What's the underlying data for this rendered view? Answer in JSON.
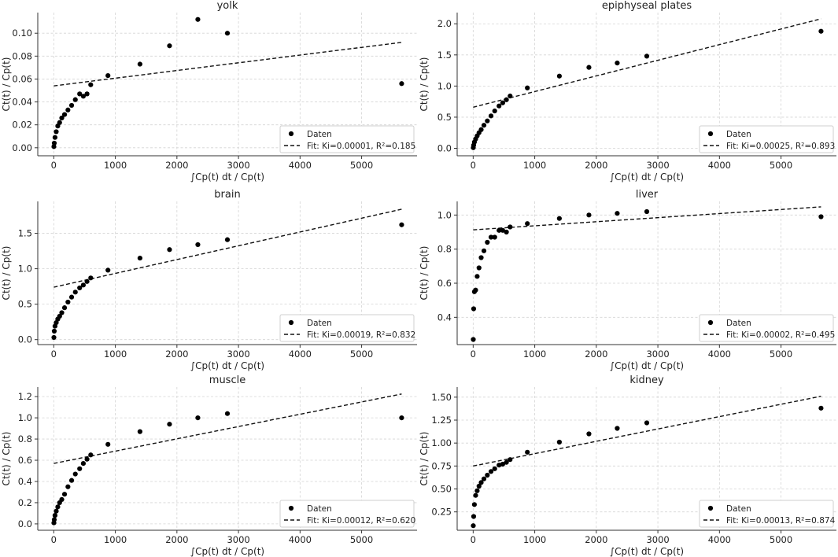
{
  "chart_data": [
    {
      "type": "scatter",
      "title": "yolk",
      "xlabel": "∫Cp(t) dt / Cp(t)",
      "ylabel": "Ct(t) / Cp(t)",
      "xlim": [
        -260,
        5900
      ],
      "ylim": [
        -0.007,
        0.118
      ],
      "xticks": [
        0,
        1000,
        2000,
        3000,
        4000,
        5000
      ],
      "yticks": [
        0.0,
        0.02,
        0.04,
        0.06,
        0.08,
        0.1
      ],
      "ytick_labels": [
        "0.00",
        "0.02",
        "0.04",
        "0.06",
        "0.08",
        "0.10"
      ],
      "grid": true,
      "legend_position": "lower-right",
      "series": [
        {
          "name": "Daten",
          "kind": "points",
          "x": [
            2,
            8,
            20,
            40,
            65,
            95,
            130,
            175,
            230,
            290,
            350,
            420,
            480,
            540,
            600,
            880,
            1400,
            1880,
            2340,
            2820,
            5650
          ],
          "y": [
            0.001,
            0.004,
            0.009,
            0.014,
            0.019,
            0.022,
            0.026,
            0.029,
            0.033,
            0.037,
            0.042,
            0.047,
            0.045,
            0.047,
            0.055,
            0.063,
            0.073,
            0.089,
            0.112,
            0.1,
            0.056
          ]
        },
        {
          "name": "Fit: Ki=0.00001, R²=0.185",
          "kind": "line",
          "x": [
            0,
            5650
          ],
          "y": [
            0.054,
            0.092
          ]
        }
      ]
    },
    {
      "type": "scatter",
      "title": "epiphyseal plates",
      "xlabel": "∫Cp(t) dt / Cp(t)",
      "ylabel": "Ct(t) / Cp(t)",
      "xlim": [
        -260,
        5900
      ],
      "ylim": [
        -0.12,
        2.18
      ],
      "xticks": [
        0,
        1000,
        2000,
        3000,
        4000,
        5000
      ],
      "yticks": [
        0.0,
        0.5,
        1.0,
        1.5,
        2.0
      ],
      "ytick_labels": [
        "0.0",
        "0.5",
        "1.0",
        "1.5",
        "2.0"
      ],
      "grid": true,
      "legend_position": "lower-right",
      "series": [
        {
          "name": "Daten",
          "kind": "points",
          "x": [
            2,
            8,
            20,
            40,
            65,
            95,
            130,
            175,
            230,
            290,
            350,
            420,
            480,
            540,
            600,
            880,
            1400,
            1880,
            2340,
            2820,
            5650
          ],
          "y": [
            0.01,
            0.05,
            0.1,
            0.15,
            0.2,
            0.25,
            0.3,
            0.37,
            0.44,
            0.52,
            0.6,
            0.68,
            0.73,
            0.78,
            0.84,
            0.97,
            1.16,
            1.3,
            1.37,
            1.48,
            1.88
          ]
        },
        {
          "name": "Fit: Ki=0.00025, R²=0.893",
          "kind": "line",
          "x": [
            0,
            5650
          ],
          "y": [
            0.66,
            2.08
          ]
        }
      ]
    },
    {
      "type": "scatter",
      "title": "brain",
      "xlabel": "∫Cp(t) dt / Cp(t)",
      "ylabel": "Ct(t) / Cp(t)",
      "xlim": [
        -260,
        5900
      ],
      "ylim": [
        -0.07,
        1.95
      ],
      "xticks": [
        0,
        1000,
        2000,
        3000,
        4000,
        5000
      ],
      "yticks": [
        0.0,
        0.5,
        1.0,
        1.5
      ],
      "ytick_labels": [
        "0.0",
        "0.5",
        "1.0",
        "1.5"
      ],
      "grid": true,
      "legend_position": "lower-right",
      "series": [
        {
          "name": "Daten",
          "kind": "points",
          "x": [
            2,
            8,
            20,
            40,
            65,
            95,
            130,
            175,
            230,
            290,
            350,
            420,
            480,
            540,
            600,
            880,
            1400,
            1880,
            2340,
            2820,
            5650
          ],
          "y": [
            0.03,
            0.12,
            0.19,
            0.24,
            0.29,
            0.33,
            0.38,
            0.45,
            0.53,
            0.6,
            0.67,
            0.73,
            0.77,
            0.82,
            0.87,
            0.98,
            1.15,
            1.27,
            1.34,
            1.41,
            1.62
          ]
        },
        {
          "name": "Fit: Ki=0.00019, R²=0.832",
          "kind": "line",
          "x": [
            0,
            5650
          ],
          "y": [
            0.74,
            1.84
          ]
        }
      ]
    },
    {
      "type": "scatter",
      "title": "liver",
      "xlabel": "∫Cp(t) dt / Cp(t)",
      "ylabel": "Ct(t) / Cp(t)",
      "xlim": [
        -260,
        5900
      ],
      "ylim": [
        0.24,
        1.08
      ],
      "xticks": [
        0,
        1000,
        2000,
        3000,
        4000,
        5000
      ],
      "yticks": [
        0.4,
        0.6,
        0.8,
        1.0
      ],
      "ytick_labels": [
        "0.4",
        "0.6",
        "0.8",
        "1.0"
      ],
      "grid": true,
      "legend_position": "lower-right",
      "series": [
        {
          "name": "Daten",
          "kind": "points",
          "x": [
            2,
            8,
            20,
            40,
            65,
            95,
            130,
            175,
            230,
            290,
            350,
            420,
            480,
            540,
            600,
            880,
            1400,
            1880,
            2340,
            2820,
            5650
          ],
          "y": [
            0.27,
            0.45,
            0.55,
            0.56,
            0.64,
            0.69,
            0.75,
            0.79,
            0.84,
            0.87,
            0.87,
            0.91,
            0.91,
            0.9,
            0.93,
            0.95,
            0.98,
            1.0,
            1.01,
            1.02,
            0.99
          ]
        },
        {
          "name": "Fit: Ki=0.00002, R²=0.495",
          "kind": "line",
          "x": [
            0,
            5650
          ],
          "y": [
            0.913,
            1.048
          ]
        }
      ]
    },
    {
      "type": "scatter",
      "title": "muscle",
      "xlabel": "∫Cp(t) dt / Cp(t)",
      "ylabel": "Ct(t) / Cp(t)",
      "xlim": [
        -260,
        5900
      ],
      "ylim": [
        -0.06,
        1.29
      ],
      "xticks": [
        0,
        1000,
        2000,
        3000,
        4000,
        5000
      ],
      "yticks": [
        0.0,
        0.2,
        0.4,
        0.6,
        0.8,
        1.0,
        1.2
      ],
      "ytick_labels": [
        "0.0",
        "0.2",
        "0.4",
        "0.6",
        "0.8",
        "1.0",
        "1.2"
      ],
      "grid": true,
      "legend_position": "lower-right",
      "series": [
        {
          "name": "Daten",
          "kind": "points",
          "x": [
            2,
            8,
            20,
            40,
            65,
            95,
            130,
            175,
            230,
            290,
            350,
            420,
            480,
            540,
            600,
            880,
            1400,
            1880,
            2340,
            2820,
            5650
          ],
          "y": [
            0.01,
            0.04,
            0.08,
            0.12,
            0.16,
            0.2,
            0.23,
            0.28,
            0.35,
            0.41,
            0.47,
            0.52,
            0.57,
            0.61,
            0.65,
            0.75,
            0.87,
            0.94,
            1.0,
            1.04,
            1.0
          ]
        },
        {
          "name": "Fit: Ki=0.00012, R²=0.620",
          "kind": "line",
          "x": [
            0,
            5650
          ],
          "y": [
            0.57,
            1.225
          ]
        }
      ]
    },
    {
      "type": "scatter",
      "title": "kidney",
      "xlabel": "∫Cp(t) dt / Cp(t)",
      "ylabel": "Ct(t) / Cp(t)",
      "xlim": [
        -260,
        5900
      ],
      "ylim": [
        0.05,
        1.61
      ],
      "xticks": [
        0,
        1000,
        2000,
        3000,
        4000,
        5000
      ],
      "yticks": [
        0.25,
        0.5,
        0.75,
        1.0,
        1.25,
        1.5
      ],
      "ytick_labels": [
        "0.25",
        "0.50",
        "0.75",
        "1.00",
        "1.25",
        "1.50"
      ],
      "grid": true,
      "legend_position": "lower-right",
      "series": [
        {
          "name": "Daten",
          "kind": "points",
          "x": [
            2,
            8,
            20,
            40,
            65,
            95,
            130,
            175,
            230,
            290,
            350,
            420,
            480,
            540,
            600,
            880,
            1400,
            1880,
            2340,
            2820,
            5650
          ],
          "y": [
            0.1,
            0.2,
            0.33,
            0.43,
            0.48,
            0.53,
            0.57,
            0.61,
            0.65,
            0.69,
            0.72,
            0.76,
            0.77,
            0.79,
            0.82,
            0.9,
            1.01,
            1.1,
            1.16,
            1.22,
            1.38
          ]
        },
        {
          "name": "Fit: Ki=0.00013, R²=0.874",
          "kind": "line",
          "x": [
            0,
            5650
          ],
          "y": [
            0.75,
            1.51
          ]
        }
      ]
    }
  ]
}
